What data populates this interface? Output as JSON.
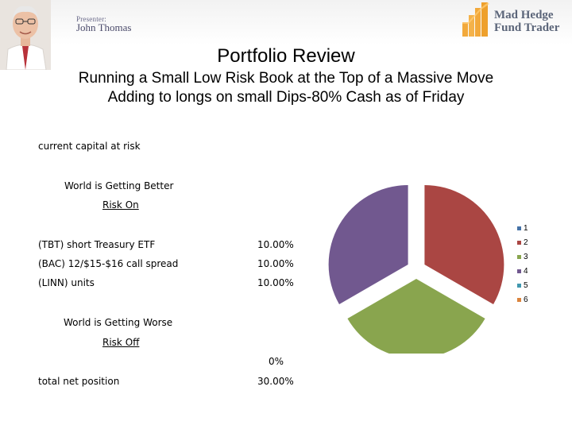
{
  "header": {
    "presenter_label": "Presenter:",
    "presenter_name": "John Thomas",
    "logo_line1": "Mad Hedge",
    "logo_line2": "Fund Trader"
  },
  "title": "Portfolio Review",
  "subtitle_lines": [
    "Running a Small Low Risk Book at the Top of a Massive Move",
    "Adding to longs on small Dips-80% Cash as of Friday"
  ],
  "table": {
    "current_capital_label": "current capital at risk",
    "better_label": "World is Getting Better",
    "risk_on_label": "Risk On",
    "positions": [
      {
        "name": "(TBT) short Treasury ETF",
        "value": "10.00%"
      },
      {
        "name": "(BAC) 12/$15-$16 call spread",
        "value": "10.00%"
      },
      {
        "name": "(LINN) units",
        "value": "10.00%"
      }
    ],
    "worse_label": "World is Getting Worse",
    "risk_off_label": "Risk Off",
    "risk_off_value": "0%",
    "total_label": "total net position",
    "total_value": "30.00%"
  },
  "chart_data": {
    "type": "pie",
    "categories": [
      "1",
      "2",
      "3",
      "4",
      "5",
      "6"
    ],
    "values": [
      0,
      10,
      10,
      10,
      0,
      0
    ],
    "colors": [
      "#4572a7",
      "#aa4643",
      "#89a54e",
      "#71588f",
      "#4198af",
      "#db843d"
    ],
    "legend_position": "right",
    "exploded": true
  }
}
